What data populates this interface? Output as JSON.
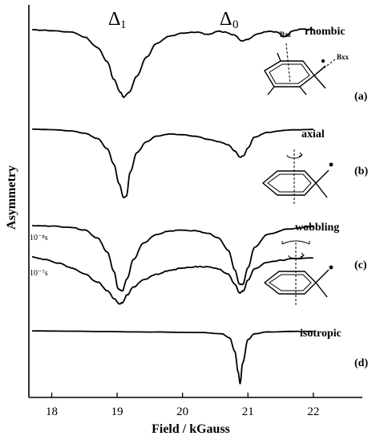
{
  "chart_data": {
    "type": "line",
    "xlabel": "Field / kGauss",
    "ylabel": "Asymmetry",
    "xlim": [
      17.65,
      22.75
    ],
    "x_ticks": [
      "18",
      "19",
      "20",
      "21",
      "22"
    ],
    "x_tick_values": [
      18,
      19,
      20,
      21,
      22
    ],
    "annotations": [
      {
        "symbol": "Δ",
        "sub": "1",
        "x": 19.1
      },
      {
        "symbol": "Δ",
        "sub": "0",
        "x": 20.85
      }
    ],
    "series": [
      {
        "name": "rhombic",
        "panel": "(a)",
        "x": [
          17.7,
          18.0,
          18.3,
          18.5,
          18.7,
          18.85,
          18.95,
          19.05,
          19.1,
          19.18,
          19.3,
          19.45,
          19.6,
          19.8,
          20.0,
          20.2,
          20.4,
          20.55,
          20.65,
          20.8,
          20.9,
          21.0,
          21.15,
          21.3,
          21.45,
          21.55,
          21.7,
          21.85,
          22.0
        ],
        "y": [
          0,
          -0.01,
          -0.03,
          -0.09,
          -0.22,
          -0.4,
          -0.62,
          -0.78,
          -0.84,
          -0.78,
          -0.58,
          -0.34,
          -0.17,
          -0.08,
          -0.04,
          -0.03,
          -0.06,
          -0.02,
          -0.03,
          -0.07,
          -0.14,
          -0.12,
          -0.05,
          -0.02,
          -0.03,
          -0.09,
          -0.01,
          0.01,
          0.0
        ]
      },
      {
        "name": "axial",
        "panel": "(b)",
        "x": [
          17.7,
          18.0,
          18.3,
          18.5,
          18.7,
          18.85,
          18.95,
          19.03,
          19.1,
          19.14,
          19.2,
          19.3,
          19.45,
          19.6,
          19.8,
          20.0,
          20.2,
          20.4,
          20.55,
          20.7,
          20.8,
          20.88,
          20.93,
          21.0,
          21.1,
          21.3,
          21.6,
          22.0
        ],
        "y": [
          0,
          -0.005,
          -0.02,
          -0.05,
          -0.12,
          -0.25,
          -0.45,
          -0.7,
          -0.88,
          -0.86,
          -0.55,
          -0.3,
          -0.16,
          -0.09,
          -0.06,
          -0.07,
          -0.09,
          -0.13,
          -0.16,
          -0.2,
          -0.28,
          -0.36,
          -0.34,
          -0.24,
          -0.1,
          -0.04,
          -0.01,
          0.0
        ]
      },
      {
        "name": "wobbling 10⁻⁸s",
        "panel": "(c)",
        "x": [
          17.7,
          18.0,
          18.3,
          18.5,
          18.7,
          18.85,
          18.95,
          19.02,
          19.08,
          19.15,
          19.25,
          19.4,
          19.6,
          19.8,
          20.0,
          20.2,
          20.4,
          20.55,
          20.7,
          20.8,
          20.87,
          20.92,
          21.0,
          21.1,
          21.3,
          21.6,
          22.0
        ],
        "y": [
          0,
          -0.005,
          -0.02,
          -0.05,
          -0.14,
          -0.3,
          -0.52,
          -0.72,
          -0.74,
          -0.6,
          -0.38,
          -0.2,
          -0.1,
          -0.06,
          -0.05,
          -0.06,
          -0.09,
          -0.14,
          -0.28,
          -0.5,
          -0.66,
          -0.67,
          -0.48,
          -0.25,
          -0.1,
          -0.04,
          -0.01
        ]
      },
      {
        "name": "wobbling 10⁻⁷s",
        "panel": "(c)",
        "x": [
          17.7,
          17.9,
          18.1,
          18.3,
          18.5,
          18.7,
          18.85,
          18.95,
          19.03,
          19.08,
          19.15,
          19.25,
          19.4,
          19.6,
          19.8,
          20.0,
          20.2,
          20.4,
          20.55,
          20.7,
          20.8,
          20.87,
          20.93,
          21.0,
          21.1,
          21.3,
          21.5,
          21.7,
          22.0
        ],
        "y": [
          0,
          -0.05,
          -0.11,
          -0.2,
          -0.31,
          -0.46,
          -0.62,
          -0.76,
          -0.86,
          -0.84,
          -0.7,
          -0.55,
          -0.42,
          -0.32,
          -0.25,
          -0.2,
          -0.18,
          -0.18,
          -0.22,
          -0.32,
          -0.5,
          -0.66,
          -0.62,
          -0.42,
          -0.22,
          -0.1,
          -0.06,
          -0.03,
          -0.02
        ]
      },
      {
        "name": "isotropic",
        "panel": "(d)",
        "x": [
          17.7,
          18.5,
          19.5,
          20.3,
          20.6,
          20.72,
          20.8,
          20.85,
          20.88,
          20.92,
          21.0,
          21.1,
          21.3,
          21.7,
          22.0
        ],
        "y": [
          0,
          -0.01,
          -0.02,
          -0.03,
          -0.05,
          -0.12,
          -0.35,
          -0.7,
          -0.9,
          -0.55,
          -0.15,
          -0.05,
          -0.02,
          -0.01,
          -0.01
        ]
      }
    ],
    "grid": false,
    "legend": "none"
  },
  "labels": {
    "rhombic": "rhombic",
    "axial": "axial",
    "wobbling": "wobbling",
    "isotropic": "isotropic",
    "panel_a": "(a)",
    "panel_b": "(b)",
    "panel_c": "(c)",
    "panel_d": "(d)",
    "time_fast": "10⁻⁸s",
    "time_slow": "10⁻⁷s",
    "bzz": "Bzz",
    "bxx": "Bxx",
    "delta_symbol": "Δ",
    "delta1_sub": "1",
    "delta0_sub": "0"
  }
}
